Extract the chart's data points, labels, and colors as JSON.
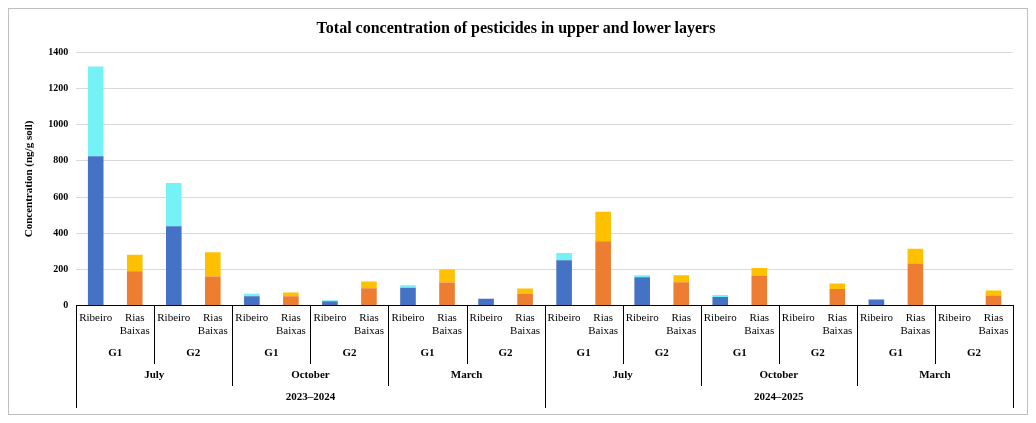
{
  "chart_data": {
    "type": "bar",
    "title": "Total concentration of pesticides in upper and lower layers",
    "ylabel": "Concentration (ng/g soil)",
    "categories": [
      "Ribeiro",
      "Rias Baixas",
      "Ribeiro",
      "Rias Baixas",
      "Ribeiro",
      "Rias Baixas",
      "Ribeiro",
      "Rias Baixas",
      "Ribeiro",
      "Rias Baixas",
      "Ribeiro",
      "Rias Baixas",
      "Ribeiro",
      "Rias Baixas",
      "Ribeiro",
      "Rias Baixas",
      "Ribeiro",
      "Rias Baixas",
      "Ribeiro",
      "Rias Baixas",
      "Ribeiro",
      "Rias Baixas",
      "Ribeiro",
      "Rias Baixas"
    ],
    "stacked": true,
    "series": [
      {
        "color": "#4472c4",
        "values": [
          825,
          null,
          438,
          null,
          52,
          null,
          24,
          null,
          99,
          null,
          38,
          null,
          251,
          null,
          156,
          null,
          47,
          null,
          0,
          null,
          34,
          null,
          0,
          null
        ]
      },
      {
        "color": "#75f2f6",
        "values": [
          496,
          null,
          239,
          null,
          14,
          null,
          6,
          null,
          14,
          null,
          0,
          null,
          39,
          null,
          12,
          null,
          12,
          null,
          0,
          null,
          0,
          null,
          0,
          null
        ]
      },
      {
        "color": "#ed7d31",
        "values": [
          null,
          190,
          null,
          161,
          null,
          51,
          null,
          96,
          null,
          127,
          null,
          66,
          null,
          356,
          null,
          129,
          null,
          163,
          null,
          92,
          null,
          232,
          null,
          56
        ]
      },
      {
        "color": "#ffc000",
        "values": [
          null,
          91,
          null,
          134,
          null,
          21,
          null,
          37,
          null,
          72,
          null,
          28,
          null,
          162,
          null,
          39,
          null,
          45,
          null,
          30,
          null,
          82,
          null,
          27
        ]
      }
    ],
    "ylim": [
      0,
      1400
    ],
    "yticks": [
      0,
      200,
      400,
      600,
      800,
      1000,
      1200,
      1400
    ],
    "grid": "y",
    "legend": false,
    "annotations": [
      "G1",
      "G2",
      "G1",
      "G2",
      "G1",
      "G2",
      "G1",
      "G2",
      "G1",
      "G2",
      "G1",
      "G2",
      "July",
      "October",
      "March",
      "July",
      "October",
      "March",
      "2023–2024",
      "2024–2025"
    ]
  }
}
